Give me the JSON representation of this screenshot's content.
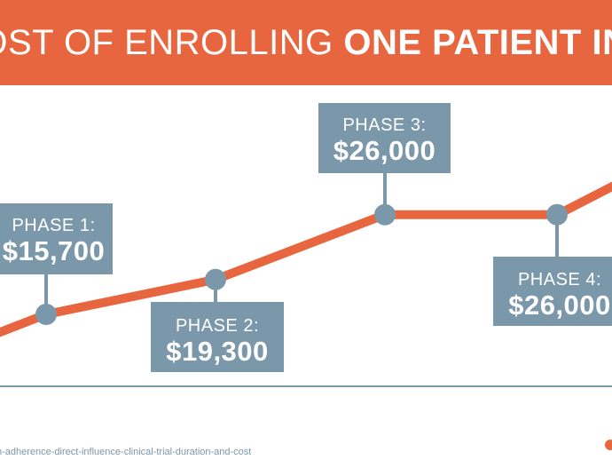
{
  "banner": {
    "title_light": "GE COST OF ENROLLING ",
    "title_bold": "ONE PATIENT IN A"
  },
  "footer": {
    "url_text": "n-adherence-direct-influence-clinical-trial-duration-and-cost"
  },
  "colors": {
    "banner": "#e8663f",
    "line": "#e8663f",
    "markers": "#7b98ab",
    "boxes": "#7b98ab",
    "axis": "#7b98ab"
  },
  "chart_data": {
    "type": "line",
    "title": "",
    "xlabel": "",
    "ylabel": "",
    "series": [
      {
        "points": [
          {
            "label": "PHASE 1:",
            "value_text": "$15,700",
            "value": 15700
          },
          {
            "label": "PHASE 2:",
            "value_text": "$19,300",
            "value": 19300
          },
          {
            "label": "PHASE 3:",
            "value_text": "$26,000",
            "value": 26000
          },
          {
            "label": "PHASE 4:",
            "value_text": "$26,000",
            "value": 26000
          }
        ]
      }
    ]
  }
}
